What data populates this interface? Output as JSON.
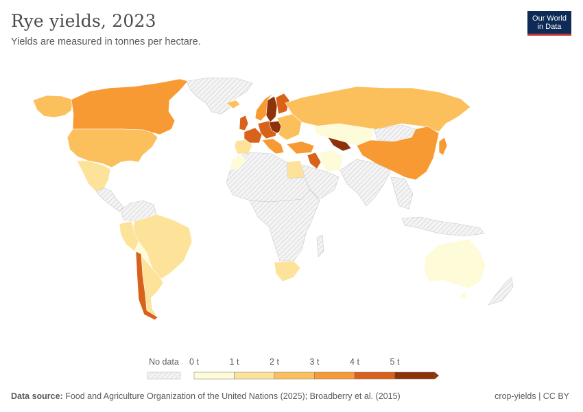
{
  "header": {
    "title": "Rye yields, 2023",
    "subtitle": "Yields are measured in tonnes per hectare."
  },
  "logo": {
    "line1": "Our World",
    "line2": "in Data"
  },
  "legend": {
    "no_data_label": "No data",
    "bins": [
      {
        "label": "0 t",
        "color": "#fefbd8"
      },
      {
        "label": "1 t",
        "color": "#fde39a"
      },
      {
        "label": "2 t",
        "color": "#fbc05c"
      },
      {
        "label": "3 t",
        "color": "#f89a34"
      },
      {
        "label": "4 t",
        "color": "#d9621b"
      },
      {
        "label": "5 t",
        "color": "#8e3309"
      }
    ]
  },
  "map_regions": [
    {
      "name": "canada",
      "tier": 3
    },
    {
      "name": "united-states",
      "tier": 2
    },
    {
      "name": "mexico",
      "tier": 1
    },
    {
      "name": "brazil",
      "tier": 1
    },
    {
      "name": "chile",
      "tier": 4
    },
    {
      "name": "argentina",
      "tier": 1
    },
    {
      "name": "russia",
      "tier": 2
    },
    {
      "name": "sweden",
      "tier": 5
    },
    {
      "name": "germany",
      "tier": 4
    },
    {
      "name": "kazakhstan",
      "tier": 0
    },
    {
      "name": "china",
      "tier": 3
    },
    {
      "name": "australia",
      "tier": 0
    },
    {
      "name": "south-africa",
      "tier": 1
    },
    {
      "name": "egypt",
      "tier": 1
    }
  ],
  "footer": {
    "source_label": "Data source:",
    "source_text": " Food and Agriculture Organization of the United Nations (2025); Broadberry et al. (2015)",
    "slug": "crop-yields | CC BY"
  }
}
